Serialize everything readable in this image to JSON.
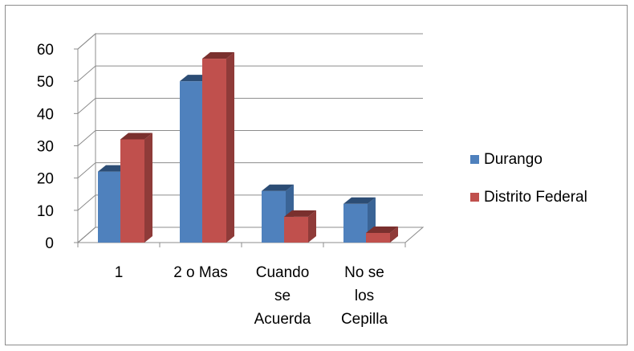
{
  "chart_data": {
    "type": "bar",
    "categories": [
      [
        "1"
      ],
      [
        "2 o Mas"
      ],
      [
        "Cuando",
        "se",
        "Acuerda"
      ],
      [
        "No se",
        "los",
        "Cepilla"
      ]
    ],
    "series": [
      {
        "name": "Durango",
        "values": [
          22,
          50,
          16,
          12
        ],
        "color": "#4f81bd",
        "side": "#3a6496",
        "top": "#2c4d75"
      },
      {
        "name": "Distrito Federal",
        "values": [
          32,
          57,
          8,
          3
        ],
        "color": "#c0504d",
        "side": "#8f3b39",
        "top": "#7a302e"
      }
    ],
    "yticks": [
      "0",
      "10",
      "20",
      "30",
      "40",
      "50",
      "60"
    ],
    "ylim": [
      0,
      60
    ],
    "grid": true,
    "legend_position": "right",
    "three_d": true
  }
}
